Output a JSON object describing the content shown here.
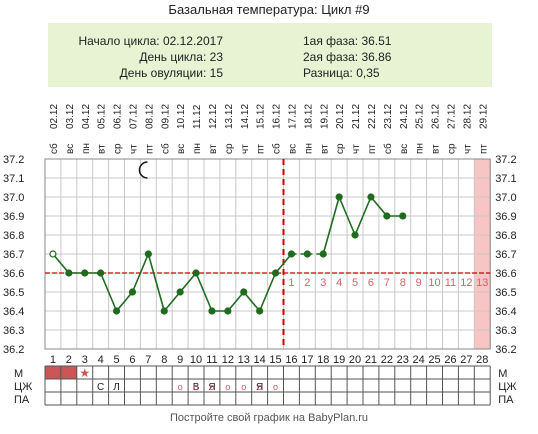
{
  "title": "Базальная температура: Цикл #9",
  "info": {
    "start_label": "Начало цикла:",
    "start_value": "02.12.2017",
    "day_label": "День цикла:",
    "day_value": "23",
    "ovulation_label": "День овуляции:",
    "ovulation_value": "15",
    "phase1_label": "1ая фаза:",
    "phase1_value": "36.51",
    "phase2_label": "2ая фаза:",
    "phase2_value": "36.86",
    "diff_label": "Разница:",
    "diff_value": "0,35"
  },
  "footer": "Постройте свой график на BabyPlan.ru",
  "colors": {
    "line": "#1f6b1f",
    "coverline": "#cc0000",
    "ovulation": "#cc0000",
    "grid": "#c8c8c8",
    "future": "#f8c4c4",
    "menses": "#cc5555",
    "phase_numbers": "#cc6666"
  },
  "chart_data": {
    "type": "line",
    "ylim": [
      36.2,
      37.2
    ],
    "y_ticks": [
      "36.2",
      "36.3",
      "36.4",
      "36.5",
      "36.6",
      "36.7",
      "36.8",
      "36.9",
      "37.0",
      "37.1",
      "37.2"
    ],
    "days": [
      1,
      2,
      3,
      4,
      5,
      6,
      7,
      8,
      9,
      10,
      11,
      12,
      13,
      14,
      15,
      16,
      17,
      18,
      19,
      20,
      21,
      22,
      23,
      24,
      25,
      26,
      27,
      28
    ],
    "dates": [
      "02.12",
      "03.12",
      "04.12",
      "05.12",
      "06.12",
      "07.12",
      "08.12",
      "09.12",
      "10.12",
      "11.12",
      "12.12",
      "13.12",
      "14.12",
      "15.12",
      "16.12",
      "17.12",
      "18.12",
      "19.12",
      "20.12",
      "21.12",
      "22.12",
      "23.12",
      "24.12",
      "25.12",
      "26.12",
      "27.12",
      "28.12",
      "29.12"
    ],
    "weekdays": [
      "сб",
      "вс",
      "пн",
      "вт",
      "ср",
      "чт",
      "пт",
      "сб",
      "вс",
      "пн",
      "вт",
      "ср",
      "чт",
      "пт",
      "сб",
      "вс",
      "пн",
      "вт",
      "ср",
      "чт",
      "пт",
      "сб",
      "вс",
      "пн",
      "вт",
      "ср",
      "чт",
      "пт"
    ],
    "temperatures": [
      36.7,
      36.6,
      36.6,
      36.6,
      36.4,
      36.5,
      36.7,
      36.4,
      36.5,
      36.6,
      36.4,
      36.4,
      36.5,
      36.4,
      36.6,
      36.7,
      36.7,
      36.7,
      37.0,
      36.8,
      37.0,
      36.9,
      36.9
    ],
    "dashed_segments": [
      [
        16,
        18
      ]
    ],
    "open_points": [
      1
    ],
    "coverline": 36.6,
    "ovulation_day": 15,
    "phase_numbers": [
      "1",
      "2",
      "3",
      "4",
      "5",
      "6",
      "7",
      "8",
      "9",
      "10",
      "11",
      "12",
      "13"
    ],
    "today_day": 28,
    "moon_day": 6
  },
  "rows": {
    "labels": [
      "М",
      "ЦЖ",
      "ПА"
    ],
    "m_days": [
      1,
      2
    ],
    "star_day": 3,
    "star": "★",
    "cj": [
      {
        "day": 4,
        "text": "С"
      },
      {
        "day": 5,
        "text": "Л"
      },
      {
        "day": 10,
        "text": "В"
      },
      {
        "day": 11,
        "text": "Я"
      },
      {
        "day": 14,
        "text": "Я"
      }
    ],
    "pa_days": [
      9,
      10,
      11,
      12,
      13,
      14,
      15
    ],
    "pa_mark": "o"
  }
}
